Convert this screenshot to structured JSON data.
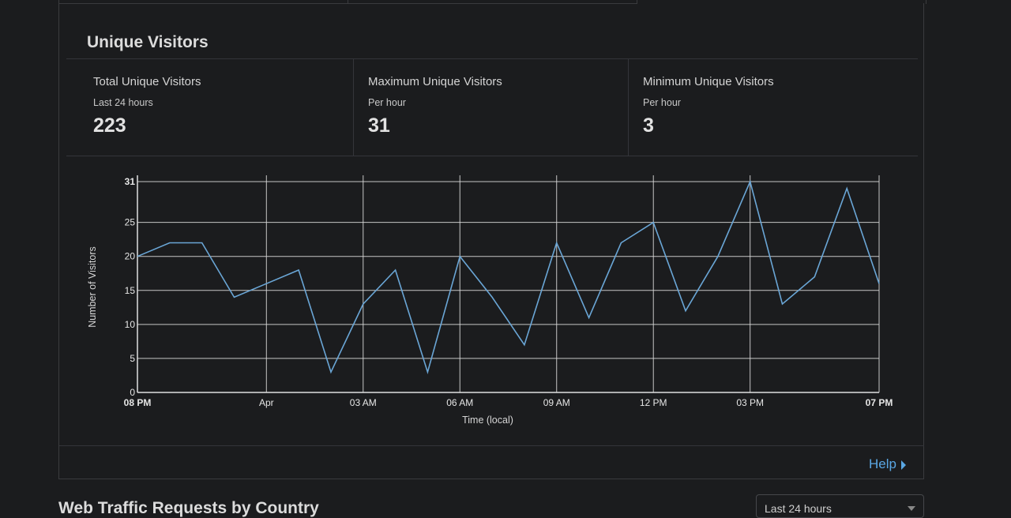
{
  "panel": {
    "title": "Unique Visitors",
    "stats": [
      {
        "label": "Total Unique Visitors",
        "sublabel": "Last 24 hours",
        "value": "223"
      },
      {
        "label": "Maximum Unique Visitors",
        "sublabel": "Per hour",
        "value": "31"
      },
      {
        "label": "Minimum Unique Visitors",
        "sublabel": "Per hour",
        "value": "3"
      }
    ],
    "help_label": "Help"
  },
  "next_section": {
    "title": "Web Traffic Requests by Country",
    "range_select": "Last 24 hours"
  },
  "colors": {
    "line": "#6aa6d6",
    "grid": "#d9d9d9",
    "link": "#5aa7e4"
  },
  "chart_data": {
    "type": "line",
    "xlabel": "Time (local)",
    "ylabel": "Number of Visitors",
    "ylim": [
      0,
      31
    ],
    "yticks": [
      "0",
      "5",
      "10",
      "15",
      "20",
      "25",
      "31"
    ],
    "xticks": [
      {
        "label": "08 PM",
        "index": 0,
        "bold": true
      },
      {
        "label": "Apr",
        "index": 4,
        "bold": false
      },
      {
        "label": "03 AM",
        "index": 7,
        "bold": false
      },
      {
        "label": "06 AM",
        "index": 10,
        "bold": false
      },
      {
        "label": "09 AM",
        "index": 13,
        "bold": false
      },
      {
        "label": "12 PM",
        "index": 16,
        "bold": false
      },
      {
        "label": "03 PM",
        "index": 19,
        "bold": false
      },
      {
        "label": "07 PM",
        "index": 23,
        "bold": true
      }
    ],
    "series": [
      {
        "values": [
          20,
          22,
          22,
          14,
          16,
          18,
          3,
          13,
          18,
          3,
          20,
          14,
          7,
          22,
          11,
          22,
          25,
          12,
          20,
          31,
          13,
          17,
          30,
          16
        ]
      }
    ],
    "grid": true
  }
}
